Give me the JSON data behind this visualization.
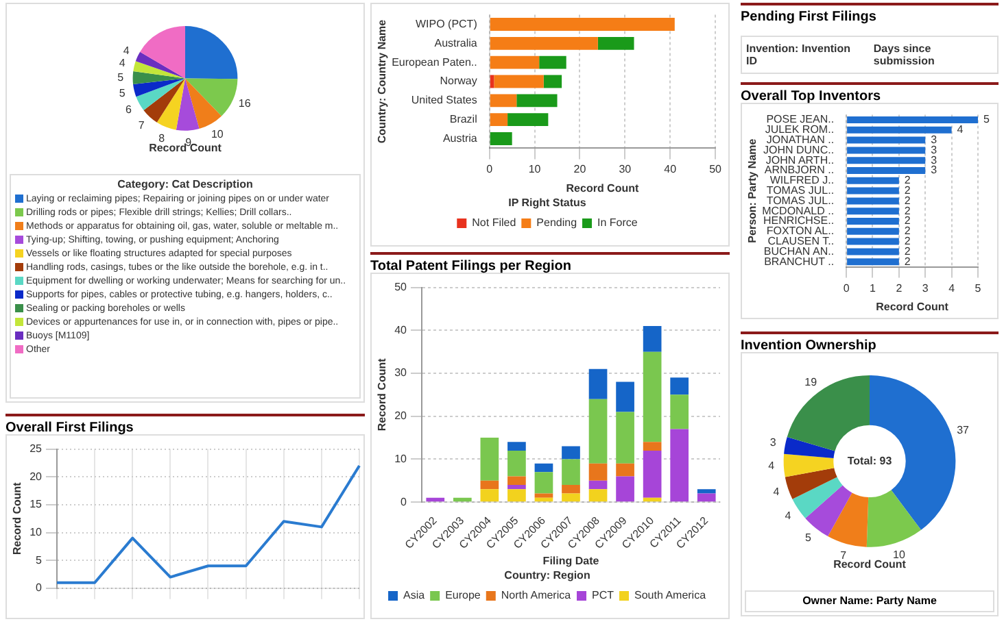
{
  "chart_data": [
    {
      "type": "pie",
      "xlabel": "Record Count",
      "legend_title": "Category: Cat Description",
      "legend": "bottom",
      "categories": [
        "Laying or reclaiming pipes;  Repairing or joining pipes on or under water",
        "Drilling rods or pipes;  Flexible drill strings;  Kellies;  Drill collars..",
        "Methods or apparatus for obtaining oil, gas, water, soluble or meltable m..",
        "Tying-up;  Shifting, towing, or pushing equipment;  Anchoring",
        "Vessels or like floating structures adapted for special purposes",
        "Handling rods, casings, tubes or the like outside the borehole, e.g. in t..",
        "Equipment for dwelling or working underwater;  Means for searching for un..",
        "Supports for pipes, cables or protective tubing, e.g. hangers, holders, c..",
        "Sealing or packing boreholes or wells",
        "Devices or appurtenances for use in, or in connection with, pipes or pipe..",
        "Buoys [M1109]",
        "Other"
      ],
      "values": [
        32,
        16,
        10,
        9,
        8,
        7,
        6,
        5,
        5,
        4,
        4,
        21
      ],
      "value_labels": [
        null,
        "16",
        "10",
        "9",
        "8",
        "7",
        "6",
        "5",
        "5",
        "4",
        "4",
        null
      ],
      "colors": [
        "#1f6fd0",
        "#7cc94d",
        "#f07e1a",
        "#a64bdb",
        "#f5d321",
        "#a33c0a",
        "#5ad8c4",
        "#0a2ac9",
        "#3a8f4a",
        "#c3e63a",
        "#6a2ec0",
        "#f06cc4"
      ]
    },
    {
      "type": "bar",
      "orientation": "horizontal",
      "stacked": true,
      "xlabel": "Record Count",
      "ylabel": "Country: Country Name",
      "legend_title": "IP Right Status",
      "legend": "bottom",
      "grid": "x",
      "categories": [
        "WIPO (PCT)",
        "Australia",
        "European Paten..",
        "Norway",
        "United States",
        "Brazil",
        "Austria"
      ],
      "xlim": [
        0,
        50
      ],
      "xticks": [
        0,
        10,
        20,
        30,
        40,
        50
      ],
      "series": [
        {
          "name": "Not Filed",
          "color": "#e8321e",
          "values": [
            0,
            0,
            0,
            1,
            0,
            0,
            0
          ]
        },
        {
          "name": "Pending",
          "color": "#f57d16",
          "values": [
            41,
            24,
            11,
            11,
            6,
            4,
            0
          ]
        },
        {
          "name": "In Force",
          "color": "#1a9a1a",
          "values": [
            0,
            8,
            6,
            4,
            9,
            9,
            5
          ]
        }
      ]
    },
    {
      "type": "other",
      "title": "Pending First Filings",
      "annotations": [
        "Invention: Invention ID",
        "Days since submission"
      ]
    },
    {
      "type": "bar",
      "orientation": "horizontal",
      "title": "Overall Top Inventors",
      "xlabel": "Record Count",
      "ylabel": "Person: Party Name",
      "grid": "x",
      "data_labels": true,
      "categories": [
        "POSE JEAN..",
        "JULEK ROM..",
        "JONATHAN ..",
        "JOHN DUNC..",
        "JOHN ARTH..",
        "ARNBJORN ..",
        "WILFRED J..",
        "TOMAS JUL..",
        "TOMAS JUL..",
        "MCDONALD ..",
        "HENRICHSE..",
        "FOXTON AL..",
        "CLAUSEN T..",
        "BUCHAN AN..",
        "BRANCHUT .."
      ],
      "values": [
        5,
        4,
        3,
        3,
        3,
        3,
        2,
        2,
        2,
        2,
        2,
        2,
        2,
        2,
        2
      ],
      "color": "#1f6fd0",
      "xlim": [
        0,
        5
      ],
      "xticks": [
        0,
        1,
        2,
        3,
        4,
        5
      ]
    },
    {
      "type": "bar",
      "stacked": true,
      "title": "Total Patent Filings per Region",
      "xlabel": "Filing Date",
      "ylabel": "Record Count",
      "legend_title": "Country: Region",
      "legend": "bottom",
      "grid": "y",
      "categories": [
        "CY2002",
        "CY2003",
        "CY2004",
        "CY2005",
        "CY2006",
        "CY2007",
        "CY2008",
        "CY2009",
        "CY2010",
        "CY2011",
        "CY2012"
      ],
      "ylim": [
        0,
        50
      ],
      "yticks": [
        0,
        10,
        20,
        30,
        40,
        50
      ],
      "series": [
        {
          "name": "South America",
          "color": "#f2d21e",
          "values": [
            0,
            0,
            3,
            3,
            1,
            2,
            3,
            0,
            1,
            0,
            0
          ]
        },
        {
          "name": "PCT",
          "color": "#a645d8",
          "values": [
            1,
            0,
            0,
            1,
            0,
            0,
            2,
            6,
            11,
            17,
            2
          ]
        },
        {
          "name": "North America",
          "color": "#e8761c",
          "values": [
            0,
            0,
            2,
            2,
            1,
            2,
            4,
            3,
            2,
            0,
            0
          ]
        },
        {
          "name": "Europe",
          "color": "#7ac74f",
          "values": [
            0,
            1,
            10,
            6,
            5,
            6,
            15,
            12,
            21,
            8,
            0
          ]
        },
        {
          "name": "Asia",
          "color": "#1565c8",
          "values": [
            0,
            0,
            0,
            2,
            2,
            3,
            7,
            7,
            6,
            4,
            1
          ]
        }
      ]
    },
    {
      "type": "line",
      "title": "Overall First Filings",
      "ylabel": "Record Count",
      "grid": true,
      "color": "#2a7bd0",
      "categories": [
        null,
        null,
        null,
        null,
        null,
        null,
        null,
        null,
        null
      ],
      "values": [
        1,
        1,
        9,
        2,
        4,
        4,
        12,
        11,
        22
      ],
      "ylim": [
        0,
        25
      ],
      "yticks": [
        0,
        5,
        10,
        15,
        20,
        25
      ]
    },
    {
      "type": "donut",
      "title": "Invention Ownership",
      "xlabel": "Record Count",
      "legend_title": "Owner Name: Party Name",
      "data_labels": true,
      "annotations": [
        "Total: 93"
      ],
      "categories": [
        null,
        null,
        null,
        null,
        null,
        null,
        null,
        null,
        null
      ],
      "values": [
        37,
        10,
        7,
        5,
        4,
        4,
        4,
        3,
        19
      ],
      "colors": [
        "#1f6fd0",
        "#7cc94d",
        "#f07e1a",
        "#a64bdb",
        "#5ad8c4",
        "#a33c0a",
        "#f5d321",
        "#0a2ac9",
        "#3a8f4a"
      ]
    }
  ]
}
